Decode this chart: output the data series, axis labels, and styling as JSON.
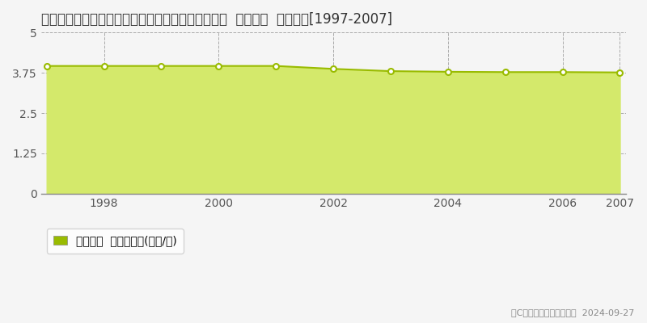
{
  "title": "新潟県三島郡出雲崎町大字大釜谷字深町１１番２０  基準地価  地価推移[1997-2007]",
  "years": [
    1997,
    1998,
    1999,
    2000,
    2001,
    2002,
    2003,
    2004,
    2005,
    2006,
    2007
  ],
  "values": [
    3.96,
    3.96,
    3.96,
    3.96,
    3.96,
    3.87,
    3.8,
    3.78,
    3.77,
    3.77,
    3.76
  ],
  "fill_color": "#d4e96b",
  "line_color": "#99bb00",
  "marker_color": "#ffffff",
  "marker_edge_color": "#99bb00",
  "bg_color": "#f5f5f5",
  "grid_color": "#aaaaaa",
  "ylim": [
    0,
    5
  ],
  "yticks": [
    0,
    1.25,
    2.5,
    3.75,
    5
  ],
  "ytick_labels": [
    "0",
    "1.25",
    "2.5",
    "3.75",
    "5"
  ],
  "xlabel_ticks": [
    1998,
    2000,
    2002,
    2004,
    2006,
    2007
  ],
  "legend_label": "基準地価  平均坪単価(万円/坪)",
  "legend_color": "#99bb00",
  "copyright_text": "（C）土地価格ドットコム  2024-09-27",
  "title_fontsize": 12,
  "tick_fontsize": 10,
  "legend_fontsize": 10,
  "copyright_fontsize": 8
}
